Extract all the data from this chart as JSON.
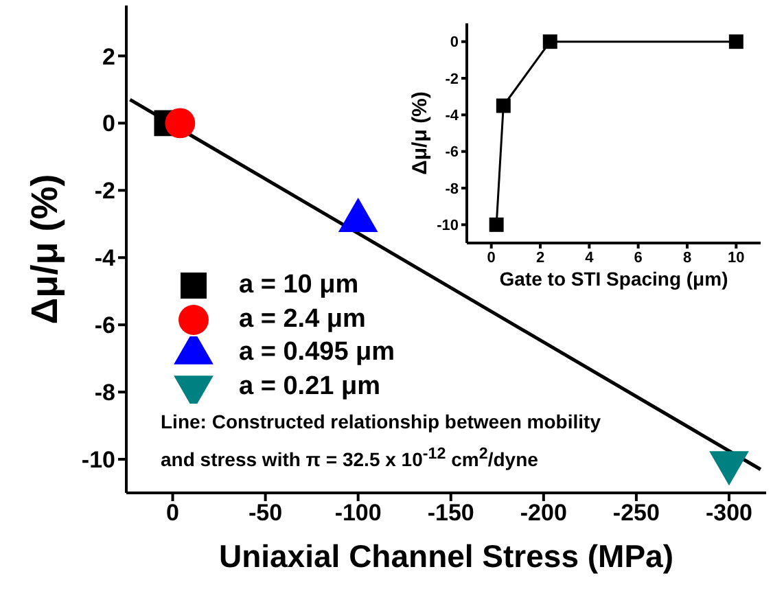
{
  "chart_data": [
    {
      "type": "scatter",
      "xlabel": "Uniaxial Channel Stress (MPa)",
      "ylabel": "Δμ/μ (%)",
      "xlim": [
        25,
        -320
      ],
      "xticks": [
        0,
        -50,
        -100,
        -150,
        -200,
        -250,
        -300
      ],
      "ylim": [
        -11,
        3.5
      ],
      "yticks": [
        -10,
        -8,
        -6,
        -4,
        -2,
        0,
        2
      ],
      "grid": false,
      "legend": "left",
      "series": [
        {
          "name": "a = 10 μm",
          "color": "#000000",
          "marker": "square",
          "x": [
            3
          ],
          "values": [
            0
          ]
        },
        {
          "name": "a = 2.4 μm",
          "color": "#ff0000",
          "marker": "circle",
          "x": [
            -4
          ],
          "values": [
            0
          ]
        },
        {
          "name": "a = 0.495 μm",
          "color": "#0000ff",
          "marker": "triangle",
          "x": [
            -100
          ],
          "values": [
            -2.9
          ]
        },
        {
          "name": "a = 0.21 μm",
          "color": "#008080",
          "marker": "triangle-down",
          "x": [
            -300
          ],
          "values": [
            -10.1
          ]
        },
        {
          "type": "line",
          "color": "#000000",
          "marker": "none",
          "line_style": "solid",
          "x": [
            23,
            -317
          ],
          "values": [
            0.7,
            -10.3
          ]
        }
      ],
      "annotations": [
        "Line: Constructed relationship between mobility and stress with π = 32.5 x 10$^{-12}$ cm$^{2}$/dyne"
      ]
    },
    {
      "type": "line",
      "xlabel": "Gate to STI Spacing (μm)",
      "ylabel": "Δμ/μ (%)",
      "xlim": [
        -1,
        11
      ],
      "xticks": [
        0,
        2,
        4,
        6,
        8,
        10
      ],
      "ylim": [
        -11,
        1
      ],
      "yticks": [
        -10,
        -8,
        -6,
        -4,
        -2,
        0
      ],
      "grid": false,
      "legend": false,
      "marker": "square",
      "line_style": "solid",
      "series": [
        {
          "color": "#000000",
          "x": [
            0.21,
            0.495,
            2.4,
            10
          ],
          "values": [
            -10,
            -3.5,
            0,
            0
          ]
        }
      ]
    }
  ]
}
